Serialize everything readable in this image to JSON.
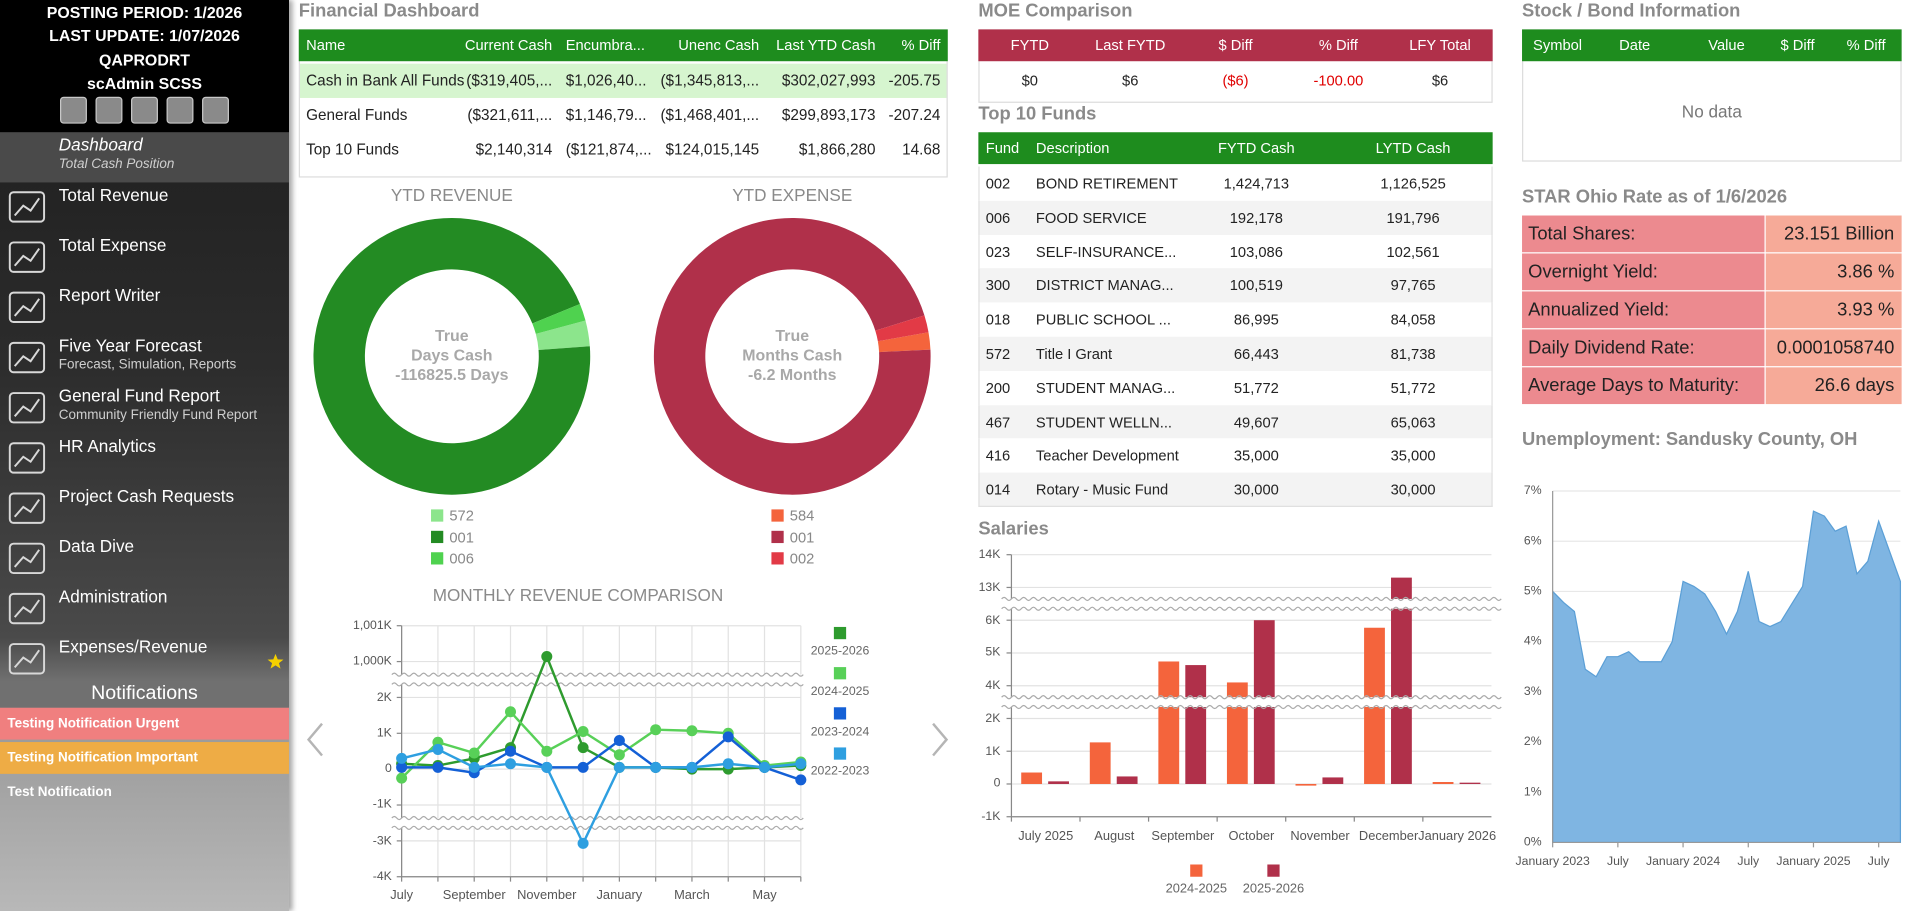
{
  "sidebar": {
    "header": [
      "POSTING PERIOD: 1/2026",
      "LAST UPDATE: 1/07/2026",
      "QAPRODRT",
      "scAdmin SCSS"
    ],
    "nav": [
      {
        "label": "Dashboard",
        "sub": "Total Cash Position"
      },
      {
        "label": "Total Revenue"
      },
      {
        "label": "Total Expense"
      },
      {
        "label": "Report Writer"
      },
      {
        "label": "Five Year Forecast",
        "sub": "Forecast, Simulation, Reports"
      },
      {
        "label": "General Fund Report",
        "sub": "Community Friendly Fund Report"
      },
      {
        "label": "HR Analytics"
      },
      {
        "label": "Project Cash Requests"
      },
      {
        "label": "Data Dive"
      },
      {
        "label": "Administration"
      },
      {
        "label": "Expenses/Revenue"
      }
    ],
    "notifications_title": "Notifications",
    "notifications": [
      "Testing Notification Urgent",
      "Testing Notification Important",
      "Test Notification"
    ]
  },
  "financial_dashboard": {
    "title": "Financial Dashboard",
    "columns": [
      "Name",
      "Current Cash",
      "Encumbra...",
      "Unenc Cash",
      "Last YTD Cash",
      "% Diff"
    ],
    "rows": [
      [
        "Cash in Bank All Funds",
        "($319,405,...",
        "$1,026,40...",
        "($1,345,813,...",
        "$302,027,993",
        "-205.75"
      ],
      [
        "General Funds",
        "($321,611,...",
        "$1,146,79...",
        "($1,468,401,...",
        "$299,893,173",
        "-207.24"
      ],
      [
        "Top 10 Funds",
        "$2,140,314",
        "($121,874,...",
        "$124,015,145",
        "$1,866,280",
        "14.68"
      ]
    ]
  },
  "moe_comparison": {
    "title": "MOE Comparison",
    "columns": [
      "FYTD",
      "Last FYTD",
      "$ Diff",
      "% Diff",
      "LFY Total"
    ],
    "rows": [
      [
        "$0",
        "$6",
        "($6)",
        "-100.00",
        "$6"
      ]
    ]
  },
  "top_funds": {
    "title": "Top 10 Funds",
    "columns": [
      "Fund",
      "Description",
      "FYTD Cash",
      "LYTD Cash"
    ],
    "rows": [
      [
        "002",
        "BOND RETIREMENT",
        "1,424,713",
        "1,126,525"
      ],
      [
        "006",
        "FOOD SERVICE",
        "192,178",
        "191,796"
      ],
      [
        "023",
        "SELF-INSURANCE...",
        "103,086",
        "102,561"
      ],
      [
        "300",
        "DISTRICT MANAG...",
        "100,519",
        "97,765"
      ],
      [
        "018",
        "PUBLIC SCHOOL ...",
        "86,995",
        "84,058"
      ],
      [
        "572",
        "Title I Grant",
        "66,443",
        "81,738"
      ],
      [
        "200",
        "STUDENT MANAG...",
        "51,772",
        "51,772"
      ],
      [
        "467",
        "STUDENT WELLN...",
        "49,607",
        "65,063"
      ],
      [
        "416",
        "Teacher Development",
        "35,000",
        "35,000"
      ],
      [
        "014",
        "Rotary - Music Fund",
        "30,000",
        "30,000"
      ]
    ]
  },
  "stock_bond": {
    "title": "Stock / Bond Information",
    "columns": [
      "Symbol",
      "Date",
      "Value",
      "$ Diff",
      "% Diff"
    ],
    "empty_text": "No data"
  },
  "star_ohio": {
    "title": "STAR Ohio Rate as of 1/6/2026",
    "rows": [
      [
        "Total Shares:",
        "23.151 Billion"
      ],
      [
        "Overnight Yield:",
        "3.86 %"
      ],
      [
        "Annualized Yield:",
        "3.93 %"
      ],
      [
        "Daily Dividend Rate:",
        "0.0001058740"
      ],
      [
        "Average Days to Maturity:",
        "26.6 days"
      ]
    ]
  },
  "chart_data": [
    {
      "type": "donut",
      "title": "YTD REVENUE",
      "center_text": [
        "True",
        "Days Cash",
        "-116825.5 Days"
      ],
      "categories": [
        "572",
        "001",
        "006"
      ],
      "values": [
        3,
        95,
        2
      ],
      "colors": [
        "#8ce58c",
        "#238b23",
        "#4fd24f"
      ]
    },
    {
      "type": "donut",
      "title": "YTD EXPENSE",
      "center_text": [
        "True",
        "Months Cash",
        "-6.2 Months"
      ],
      "categories": [
        "584",
        "001",
        "002"
      ],
      "values": [
        2,
        96,
        2
      ],
      "colors": [
        "#f4643c",
        "#b0304a",
        "#e23a46"
      ]
    },
    {
      "type": "line",
      "title": "MONTHLY REVENUE COMPARISON",
      "categories": [
        "July",
        null,
        "September",
        null,
        "November",
        null,
        "January",
        null,
        "March",
        null,
        "May",
        null
      ],
      "series": [
        {
          "name": "2025-2026",
          "color": "#2e9b2e",
          "values": [
            150,
            100,
            300,
            600,
            1000140,
            600,
            50,
            50,
            0,
            0,
            50,
            100
          ]
        },
        {
          "name": "2024-2025",
          "color": "#58d058",
          "values": [
            -250,
            750,
            450,
            1600,
            500,
            1050,
            400,
            1100,
            1070,
            1000,
            100,
            200
          ]
        },
        {
          "name": "2023-2024",
          "color": "#1460d6",
          "values": [
            50,
            50,
            -100,
            500,
            50,
            50,
            800,
            50,
            50,
            900,
            50,
            -300
          ]
        },
        {
          "name": "2022-2023",
          "color": "#2e9fe0",
          "values": [
            300,
            550,
            50,
            150,
            50,
            -3070,
            50,
            50,
            50,
            150,
            50,
            150
          ]
        }
      ],
      "ylim": [
        -4000,
        1001000
      ],
      "yticks": [
        {
          "value": -4000,
          "label": "-4K"
        },
        {
          "value": -3000,
          "label": "-3K"
        },
        {
          "value": -1000,
          "label": "-1K"
        },
        0,
        {
          "value": 1000,
          "label": "1K"
        },
        {
          "value": 2000,
          "label": "2K"
        },
        {
          "value": 1000000,
          "label": "1,000K"
        },
        {
          "value": 1001000,
          "label": "1,001K"
        }
      ],
      "y_breaks": [
        [
          -3000,
          -1000
        ],
        [
          2000,
          1000000
        ]
      ],
      "grid": true,
      "legend": "right"
    },
    {
      "type": "bar",
      "title": "Salaries",
      "categories": [
        "July 2025",
        "August",
        "September",
        "October",
        "November",
        "December",
        "January 2026"
      ],
      "series": [
        {
          "name": "2024-2025",
          "color": "#f4643c",
          "values": [
            350,
            1270,
            4740,
            4100,
            -50,
            5770,
            60
          ]
        },
        {
          "name": "2025-2026",
          "color": "#b0304a",
          "values": [
            80,
            230,
            4630,
            6000,
            200,
            13300,
            40
          ]
        }
      ],
      "ylim": [
        -1000,
        14000
      ],
      "yticks": [
        {
          "value": -1000,
          "label": "-1K"
        },
        0,
        {
          "value": 1000,
          "label": "1K"
        },
        {
          "value": 2000,
          "label": "2K"
        },
        {
          "value": 4000,
          "label": "4K"
        },
        {
          "value": 5000,
          "label": "5K"
        },
        {
          "value": 6000,
          "label": "6K"
        },
        {
          "value": 13000,
          "label": "13K"
        },
        {
          "value": 14000,
          "label": "14K"
        }
      ],
      "y_breaks": [
        [
          2000,
          4000
        ],
        [
          6000,
          13000
        ]
      ],
      "grid": true,
      "legend": "bottom"
    },
    {
      "type": "area",
      "title": "Unemployment: Sandusky County, OH",
      "categories": [
        "January 2023",
        null,
        null,
        null,
        null,
        null,
        "July",
        null,
        null,
        null,
        null,
        null,
        "January 2024",
        null,
        null,
        null,
        null,
        null,
        "July",
        null,
        null,
        null,
        null,
        null,
        "January 2025",
        null,
        null,
        null,
        null,
        null,
        "July",
        null,
        null
      ],
      "values": [
        5.0,
        4.78,
        4.6,
        3.45,
        3.3,
        3.7,
        3.7,
        3.8,
        3.6,
        3.6,
        3.6,
        4.0,
        5.2,
        5.1,
        4.95,
        4.6,
        4.15,
        4.6,
        5.4,
        4.4,
        4.3,
        4.4,
        4.75,
        5.1,
        6.6,
        6.5,
        6.2,
        6.3,
        5.35,
        5.6,
        6.4,
        5.8,
        5.2
      ],
      "color": "#7fb5e2",
      "ylim": [
        0,
        7
      ],
      "yticks": [
        {
          "value": 0,
          "label": "0%"
        },
        {
          "value": 1,
          "label": "1%"
        },
        {
          "value": 2,
          "label": "2%"
        },
        {
          "value": 3,
          "label": "3%"
        },
        {
          "value": 4,
          "label": "4%"
        },
        {
          "value": 5,
          "label": "5%"
        },
        {
          "value": 6,
          "label": "6%"
        },
        {
          "value": 7,
          "label": "7%"
        }
      ],
      "grid": true
    }
  ]
}
